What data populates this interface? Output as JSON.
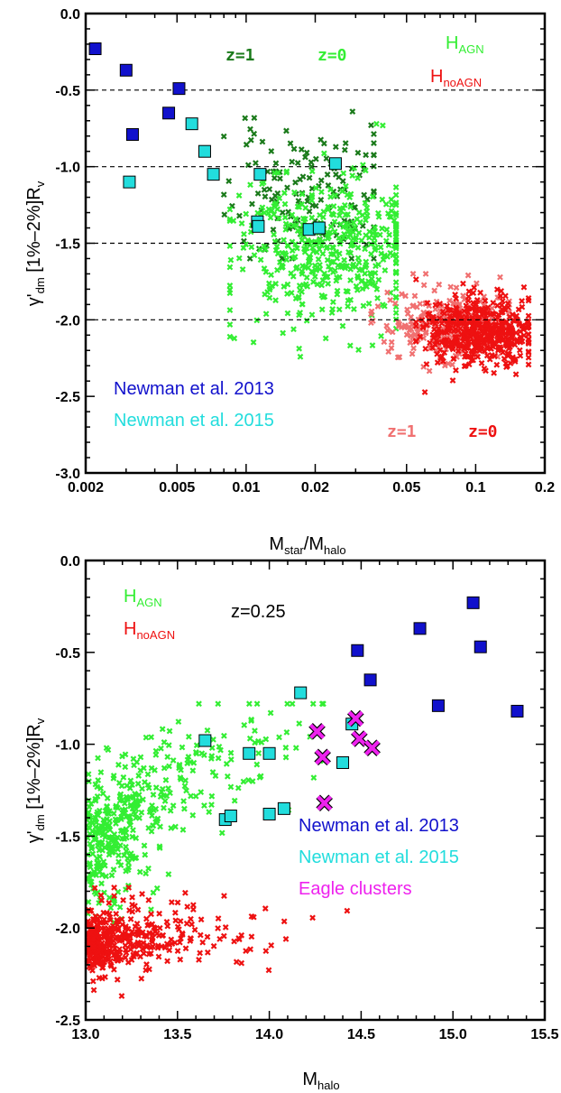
{
  "chart_data": [
    {
      "type": "scatter",
      "xscale": "log",
      "xlim": [
        0.002,
        0.2
      ],
      "ylim": [
        -3.0,
        0.0
      ],
      "xticks": [
        "0.002",
        "0.005",
        "0.01",
        "0.02",
        "0.05",
        "0.1",
        "0.2"
      ],
      "xtick_values": [
        0.002,
        0.005,
        0.01,
        0.02,
        0.05,
        0.1,
        0.2
      ],
      "yticks": [
        "0.0",
        "-0.5",
        "-1.0",
        "-1.5",
        "-2.0",
        "-2.5",
        "-3.0"
      ],
      "ytick_values": [
        0.0,
        -0.5,
        -1.0,
        -1.5,
        -2.0,
        -2.5,
        -3.0
      ],
      "xlabel": {
        "main": "M",
        "sub1": "star",
        "mid": "/M",
        "sub2": "halo"
      },
      "ylabel": {
        "pre": "γ'",
        "sub": "dm",
        "post": " [1%–2%]R",
        "sub2": "v"
      },
      "hlines": [
        -0.5,
        -1.0,
        -1.5,
        -2.0
      ],
      "legend": [
        {
          "text": "H",
          "sub": "AGN",
          "color": "#33ee33"
        },
        {
          "text": "H",
          "sub": "noAGN",
          "color": "#ee1111"
        }
      ],
      "z_labels": [
        {
          "text": "z=1",
          "color": "#1a7a1a"
        },
        {
          "text": "z=0",
          "color": "#33ee33"
        },
        {
          "text": "z=1",
          "color": "#f07070"
        },
        {
          "text": "z=0",
          "color": "#ee1111"
        }
      ],
      "obs_labels": [
        {
          "text": "Newman et al. 2013",
          "color": "#1111cc"
        },
        {
          "text": "Newman et al. 2015",
          "color": "#22dddd"
        }
      ],
      "series": [
        {
          "name": "Newman et al. 2013",
          "marker": "square",
          "color": "#1111cc",
          "points": [
            [
              0.0022,
              -0.23
            ],
            [
              0.003,
              -0.37
            ],
            [
              0.0032,
              -0.79
            ],
            [
              0.0046,
              -0.65
            ],
            [
              0.0051,
              -0.49
            ]
          ]
        },
        {
          "name": "Newman et al. 2015",
          "marker": "square",
          "color": "#22dddd",
          "points": [
            [
              0.0031,
              -1.1
            ],
            [
              0.0058,
              -0.72
            ],
            [
              0.0066,
              -0.9
            ],
            [
              0.0072,
              -1.05
            ],
            [
              0.0112,
              -1.36
            ],
            [
              0.0113,
              -1.39
            ],
            [
              0.0115,
              -1.05
            ],
            [
              0.0188,
              -1.41
            ],
            [
              0.0208,
              -1.4
            ],
            [
              0.0245,
              -0.98
            ]
          ]
        }
      ],
      "clouds": [
        {
          "name": "HAGN z=1",
          "color": "#1a7a1a",
          "n": 150,
          "x_center": 0.018,
          "x_log_spread": 0.17,
          "y_center": -1.18,
          "y_spread": 0.22,
          "x_min": 0.008,
          "x_max": 0.036,
          "y_min": -1.6,
          "y_max": -0.55,
          "seed": 11
        },
        {
          "name": "HAGN z=0",
          "color": "#33ee33",
          "n": 460,
          "x_center": 0.022,
          "x_log_spread": 0.2,
          "y_center": -1.55,
          "y_spread": 0.25,
          "x_min": 0.0085,
          "x_max": 0.045,
          "y_min": -2.25,
          "y_max": -0.7,
          "seed": 23
        },
        {
          "name": "HnoAGN z=1",
          "color": "#f07070",
          "n": 260,
          "x_center": 0.078,
          "x_log_spread": 0.14,
          "y_center": -2.03,
          "y_spread": 0.11,
          "x_min": 0.035,
          "x_max": 0.14,
          "y_min": -2.4,
          "y_max": -1.7,
          "seed": 37
        },
        {
          "name": "HnoAGN z=0",
          "color": "#ee1111",
          "n": 460,
          "x_center": 0.105,
          "x_log_spread": 0.12,
          "y_center": -2.07,
          "y_spread": 0.12,
          "x_min": 0.055,
          "x_max": 0.17,
          "y_min": -2.5,
          "y_max": -1.65,
          "seed": 41
        }
      ]
    },
    {
      "type": "scatter",
      "xscale": "linear",
      "xlim": [
        13.0,
        15.5
      ],
      "ylim": [
        -2.5,
        0.0
      ],
      "xticks": [
        "13.0",
        "13.5",
        "14.0",
        "14.5",
        "15.0",
        "15.5"
      ],
      "xtick_values": [
        13.0,
        13.5,
        14.0,
        14.5,
        15.0,
        15.5
      ],
      "yticks": [
        "0.0",
        "-0.5",
        "-1.0",
        "-1.5",
        "-2.0",
        "-2.5"
      ],
      "ytick_values": [
        0.0,
        -0.5,
        -1.0,
        -1.5,
        -2.0,
        -2.5
      ],
      "xlabel": {
        "main": "M",
        "sub1": "halo",
        "mid": "",
        "sub2": ""
      },
      "ylabel": {
        "pre": "γ'",
        "sub": "dm",
        "post": " [1%–2%]R",
        "sub2": "v"
      },
      "redshift_label": "z=0.25",
      "legend": [
        {
          "text": "H",
          "sub": "AGN",
          "color": "#33ee33"
        },
        {
          "text": "H",
          "sub": "noAGN",
          "color": "#ee1111"
        }
      ],
      "obs_labels": [
        {
          "text": "Newman et al. 2013",
          "color": "#1111cc"
        },
        {
          "text": "Newman et al. 2015",
          "color": "#22dddd"
        },
        {
          "text": "Eagle clusters",
          "color": "#ee22ee"
        }
      ],
      "series": [
        {
          "name": "Newman et al. 2013",
          "marker": "square",
          "color": "#1111cc",
          "points": [
            [
              14.48,
              -0.49
            ],
            [
              14.55,
              -0.65
            ],
            [
              14.82,
              -0.37
            ],
            [
              14.92,
              -0.79
            ],
            [
              15.11,
              -0.23
            ],
            [
              15.15,
              -0.47
            ],
            [
              15.35,
              -0.82
            ]
          ]
        },
        {
          "name": "Newman et al. 2015",
          "marker": "square",
          "color": "#22dddd",
          "points": [
            [
              13.65,
              -0.98
            ],
            [
              13.76,
              -1.41
            ],
            [
              13.79,
              -1.39
            ],
            [
              13.89,
              -1.05
            ],
            [
              14.0,
              -1.05
            ],
            [
              14.0,
              -1.38
            ],
            [
              14.08,
              -1.35
            ],
            [
              14.17,
              -0.72
            ],
            [
              14.4,
              -1.1
            ],
            [
              14.45,
              -0.89
            ]
          ]
        },
        {
          "name": "Eagle clusters",
          "marker": "x",
          "color": "#ee22ee",
          "points": [
            [
              14.26,
              -0.93
            ],
            [
              14.29,
              -1.07
            ],
            [
              14.3,
              -1.32
            ],
            [
              14.47,
              -0.86
            ],
            [
              14.49,
              -0.97
            ],
            [
              14.56,
              -1.02
            ]
          ]
        }
      ],
      "clouds": [
        {
          "name": "HAGN",
          "color": "#33ee33",
          "n": 430,
          "trend": true,
          "x_min": 13.0,
          "x_max": 14.5,
          "x_decay": 0.33,
          "y_at_13": -1.55,
          "slope": 0.55,
          "y_spread": 0.19,
          "y_min": -2.05,
          "y_max": -0.78,
          "seed": 53
        },
        {
          "name": "HnoAGN",
          "color": "#ee1111",
          "n": 420,
          "trend": true,
          "x_min": 13.0,
          "x_max": 14.6,
          "x_decay": 0.22,
          "y_at_13": -2.08,
          "slope": 0.07,
          "y_spread": 0.09,
          "y_min": -2.37,
          "y_max": -1.78,
          "seed": 67
        }
      ]
    }
  ]
}
